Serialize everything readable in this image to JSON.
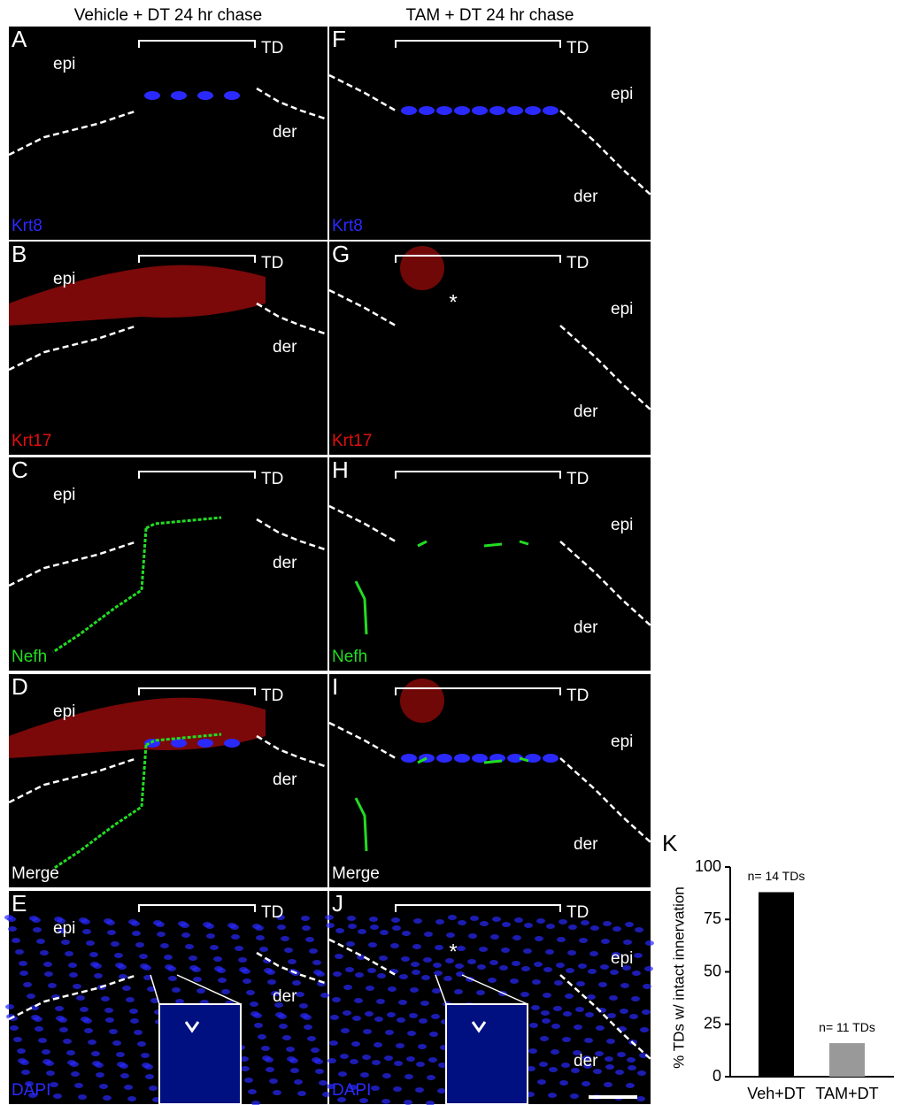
{
  "columns": [
    {
      "title": "Vehicle + DT 24 hr chase",
      "panels": [
        {
          "letter": "A",
          "stain": "Krt8",
          "color": "#2a2aff",
          "epi": "epi",
          "der": "der",
          "td": "TD"
        },
        {
          "letter": "B",
          "stain": "Krt17",
          "color": "#e01010",
          "epi": "epi",
          "der": "der",
          "td": "TD"
        },
        {
          "letter": "C",
          "stain": "Nefh",
          "color": "#22dd22",
          "epi": "epi",
          "der": "der",
          "td": "TD"
        },
        {
          "letter": "D",
          "stain": "Merge",
          "color": "#ffffff",
          "epi": "epi",
          "der": "der",
          "td": "TD"
        },
        {
          "letter": "E",
          "stain": "DAPI",
          "color": "#2a2aff",
          "epi": "epi",
          "der": "der",
          "td": "TD"
        }
      ]
    },
    {
      "title": "TAM + DT 24 hr chase",
      "panels": [
        {
          "letter": "F",
          "stain": "Krt8",
          "color": "#2a2aff",
          "epi": "epi",
          "der": "der",
          "td": "TD"
        },
        {
          "letter": "G",
          "stain": "Krt17",
          "color": "#e01010",
          "epi": "epi",
          "der": "der",
          "td": "TD",
          "note": "*"
        },
        {
          "letter": "H",
          "stain": "Nefh",
          "color": "#22dd22",
          "epi": "epi",
          "der": "der",
          "td": "TD"
        },
        {
          "letter": "I",
          "stain": "Merge",
          "color": "#ffffff",
          "epi": "epi",
          "der": "der",
          "td": "TD"
        },
        {
          "letter": "J",
          "stain": "DAPI",
          "color": "#2a2aff",
          "epi": "epi",
          "der": "der",
          "td": "TD",
          "note": "*"
        }
      ]
    }
  ],
  "chart_data": {
    "type": "bar",
    "panel": "K",
    "ylabel": "% TDs w/ intact innervation",
    "categories": [
      "Veh+DT",
      "TAM+DT"
    ],
    "values": [
      88,
      16
    ],
    "colors": [
      "#000000",
      "#999999"
    ],
    "annotations": [
      "n= 14 TDs",
      "n= 11 TDs"
    ],
    "ylim": [
      0,
      100
    ],
    "yticks": [
      0,
      25,
      50,
      75,
      100
    ]
  }
}
